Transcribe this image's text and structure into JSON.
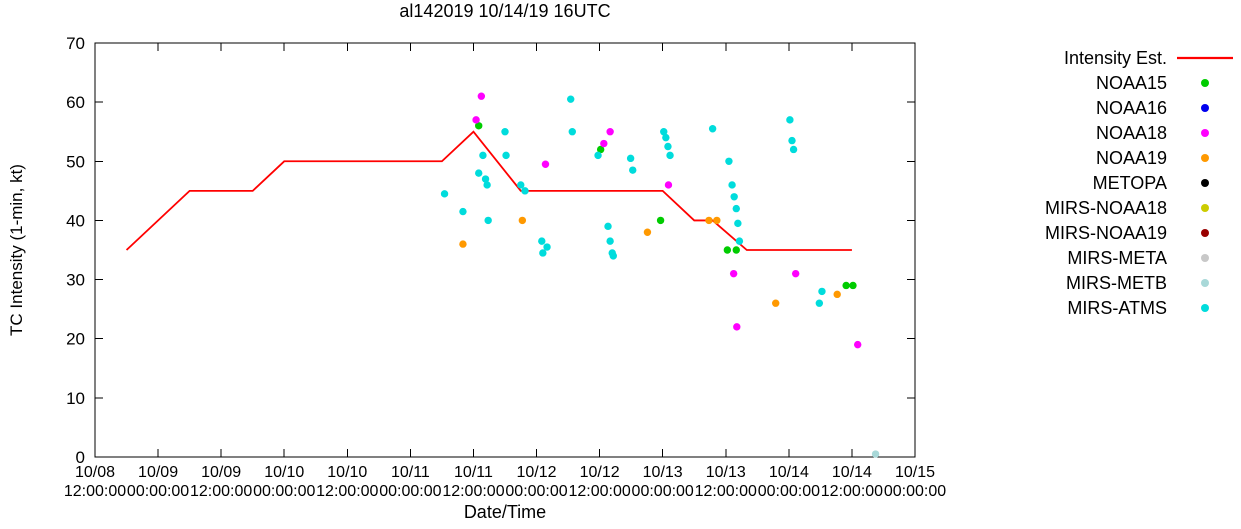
{
  "title": "al142019 10/14/19 16UTC",
  "axes": {
    "xlabel": "Date/Time",
    "ylabel": "TC Intensity (1-min, kt)",
    "yticks": [
      0,
      10,
      20,
      30,
      40,
      50,
      60,
      70
    ],
    "xticks": [
      {
        "date": "10/08",
        "time": "12:00:00"
      },
      {
        "date": "10/09",
        "time": "00:00:00"
      },
      {
        "date": "10/09",
        "time": "12:00:00"
      },
      {
        "date": "10/10",
        "time": "00:00:00"
      },
      {
        "date": "10/10",
        "time": "12:00:00"
      },
      {
        "date": "10/11",
        "time": "00:00:00"
      },
      {
        "date": "10/11",
        "time": "12:00:00"
      },
      {
        "date": "10/12",
        "time": "00:00:00"
      },
      {
        "date": "10/12",
        "time": "12:00:00"
      },
      {
        "date": "10/13",
        "time": "00:00:00"
      },
      {
        "date": "10/13",
        "time": "12:00:00"
      },
      {
        "date": "10/14",
        "time": "00:00:00"
      },
      {
        "date": "10/14",
        "time": "12:00:00"
      },
      {
        "date": "10/15",
        "time": "00:00:00"
      }
    ]
  },
  "chart_data": {
    "type": "line+scatter",
    "title": "al142019 10/14/19 16UTC",
    "xlabel": "Date/Time",
    "ylabel": "TC Intensity (1-min, kt)",
    "ylim": [
      0,
      70
    ],
    "x_unit_hours_since": "10/08 12:00:00",
    "xlim": [
      0,
      156
    ],
    "x_tick_step_hours": 12,
    "grid": false,
    "legend_position": "right",
    "intensity_line": {
      "name": "Intensity Est.",
      "color": "#ff0000",
      "points": [
        [
          6,
          35
        ],
        [
          18,
          45
        ],
        [
          30,
          45
        ],
        [
          36,
          50
        ],
        [
          66,
          50
        ],
        [
          72,
          55
        ],
        [
          81,
          45
        ],
        [
          108,
          45
        ],
        [
          114,
          40
        ],
        [
          117.5,
          40
        ],
        [
          124,
          35
        ],
        [
          144,
          35
        ]
      ]
    },
    "series": [
      {
        "name": "NOAA15",
        "color": "#00cc00",
        "points": [
          [
            73,
            56
          ],
          [
            96.2,
            52
          ],
          [
            107.6,
            40
          ],
          [
            120.3,
            35
          ],
          [
            122,
            35
          ],
          [
            142.9,
            29
          ],
          [
            144.2,
            29
          ]
        ]
      },
      {
        "name": "NOAA16",
        "color": "#0000ee",
        "points": []
      },
      {
        "name": "NOAA18",
        "color": "#ff00ff",
        "points": [
          [
            72.5,
            57
          ],
          [
            73.5,
            61
          ],
          [
            85.7,
            49.5
          ],
          [
            96.8,
            53
          ],
          [
            98,
            55
          ],
          [
            109.1,
            46
          ],
          [
            121.5,
            31
          ],
          [
            122.1,
            22
          ],
          [
            133.3,
            31
          ],
          [
            145.1,
            19
          ]
        ]
      },
      {
        "name": "NOAA19",
        "color": "#ff9900",
        "points": [
          [
            70,
            36
          ],
          [
            81.3,
            40
          ],
          [
            105.1,
            38
          ],
          [
            116.8,
            40
          ],
          [
            118.3,
            40
          ],
          [
            129.5,
            26
          ],
          [
            141.2,
            27.5
          ]
        ]
      },
      {
        "name": "METOPA",
        "color": "#000000",
        "points": []
      },
      {
        "name": "MIRS-NOAA18",
        "color": "#cccc00",
        "points": []
      },
      {
        "name": "MIRS-NOAA19",
        "color": "#990000",
        "points": []
      },
      {
        "name": "MIRS-META",
        "color": "#c8c8c8",
        "points": []
      },
      {
        "name": "MIRS-METB",
        "color": "#a8d8d8",
        "points": [
          [
            148.5,
            0.5
          ]
        ]
      },
      {
        "name": "MIRS-ATMS",
        "color": "#00dcdc",
        "points": [
          [
            66.5,
            44.5
          ],
          [
            70,
            41.5
          ],
          [
            73,
            48
          ],
          [
            73.8,
            51
          ],
          [
            74.3,
            47
          ],
          [
            74.6,
            46
          ],
          [
            74.8,
            40
          ],
          [
            78,
            55
          ],
          [
            78.2,
            51
          ],
          [
            81,
            46
          ],
          [
            81.8,
            45
          ],
          [
            85,
            36.5
          ],
          [
            85.2,
            34.5
          ],
          [
            86,
            35.5
          ],
          [
            90.5,
            60.5
          ],
          [
            90.8,
            55
          ],
          [
            95.7,
            51
          ],
          [
            97.6,
            39
          ],
          [
            98,
            36.5
          ],
          [
            98.4,
            34.5
          ],
          [
            98.6,
            34
          ],
          [
            101.9,
            50.5
          ],
          [
            102.3,
            48.5
          ],
          [
            108.2,
            55
          ],
          [
            108.6,
            54
          ],
          [
            109,
            52.5
          ],
          [
            109.4,
            51
          ],
          [
            117.5,
            55.5
          ],
          [
            120.6,
            50
          ],
          [
            121.2,
            46
          ],
          [
            121.6,
            44
          ],
          [
            122,
            42
          ],
          [
            122.3,
            39.5
          ],
          [
            122.6,
            36.5
          ],
          [
            132.2,
            57
          ],
          [
            132.6,
            53.5
          ],
          [
            132.9,
            52
          ],
          [
            137.8,
            26
          ],
          [
            138.3,
            28
          ]
        ]
      }
    ]
  }
}
